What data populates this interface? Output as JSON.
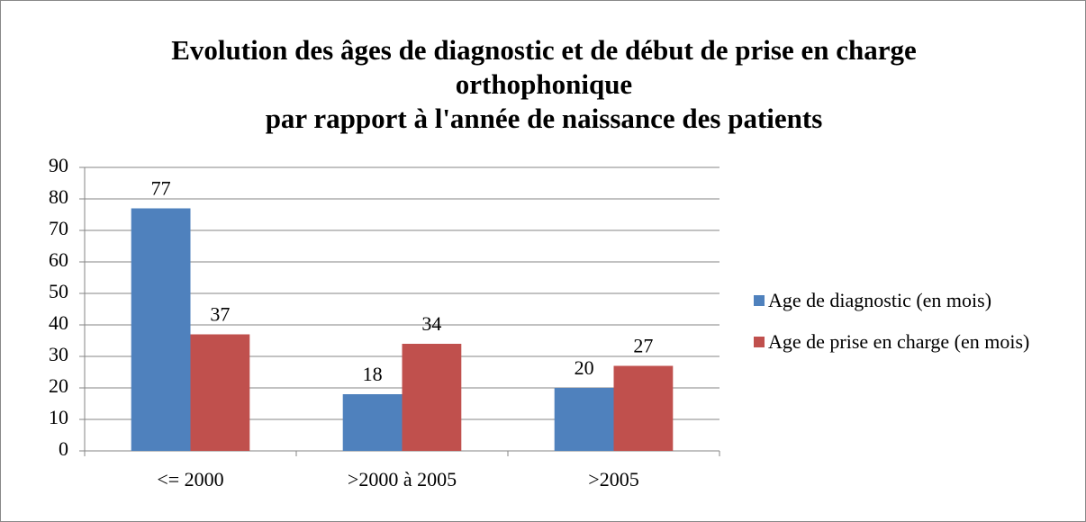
{
  "chart_data": {
    "type": "bar",
    "title": "Evolution des âges de diagnostic et de début de prise en charge orthophonique\npar rapport à l'année de naissance des patients",
    "categories": [
      "<= 2000",
      ">2000 à 2005",
      ">2005"
    ],
    "series": [
      {
        "name": "Age de diagnostic (en mois)",
        "color": "#4f81bd",
        "values": [
          77,
          18,
          20
        ]
      },
      {
        "name": "Age de prise en charge (en mois)",
        "color": "#c0504d",
        "values": [
          37,
          34,
          27
        ]
      }
    ],
    "ylim": [
      0,
      90
    ],
    "yticks": [
      0,
      10,
      20,
      30,
      40,
      50,
      60,
      70,
      80,
      90
    ],
    "grid": true,
    "legend": "right"
  }
}
